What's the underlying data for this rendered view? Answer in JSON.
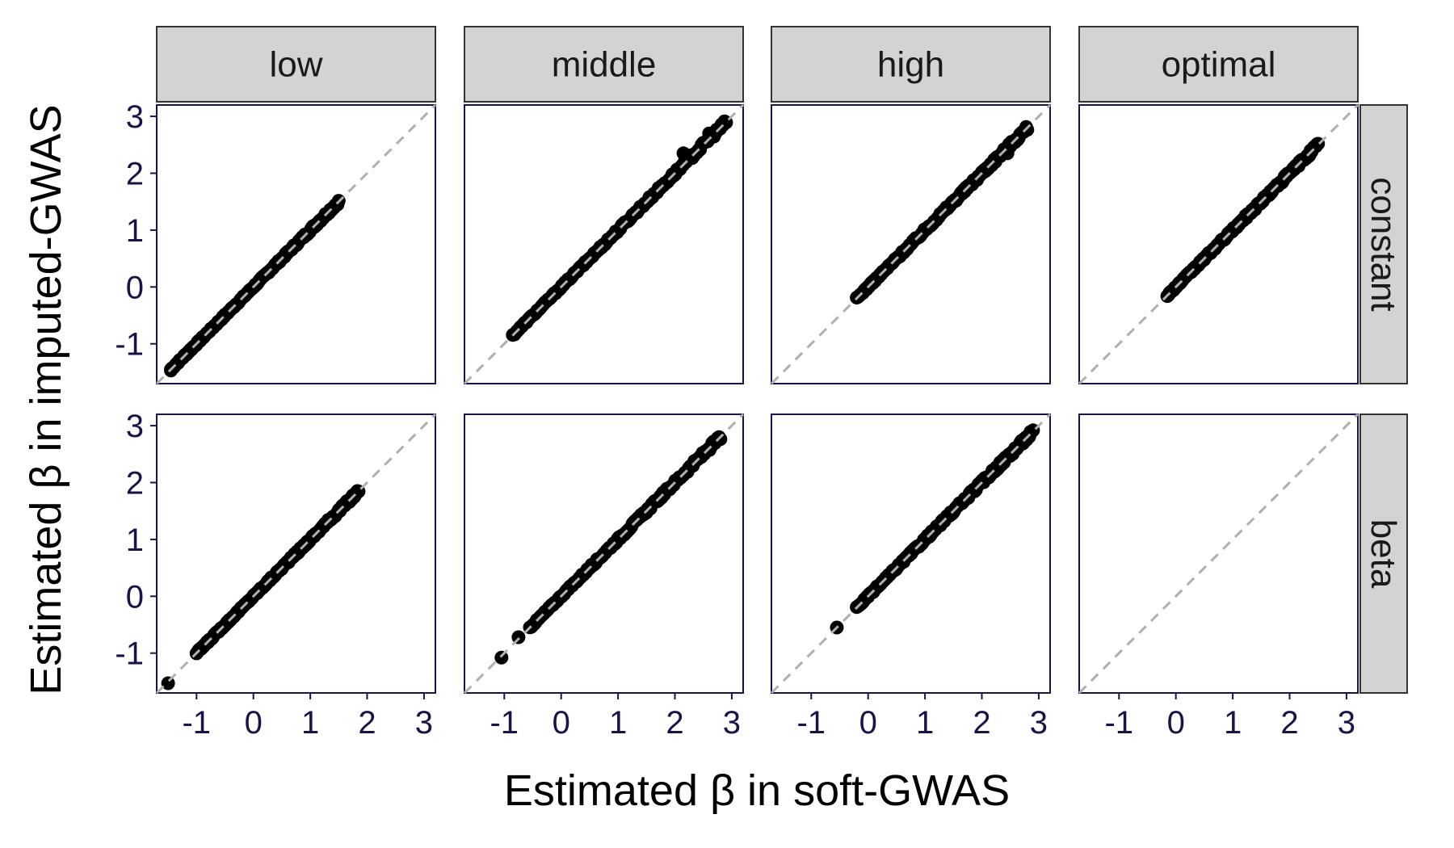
{
  "chart_data": {
    "type": "scatter",
    "xlabel": "Estimated β in soft-GWAS",
    "ylabel": "Estimated β in imputed-GWAS",
    "col_strips": [
      "low",
      "middle",
      "high",
      "optimal"
    ],
    "row_strips": [
      "constant",
      "beta"
    ],
    "xlim": [
      -1.7,
      3.2
    ],
    "ylim": [
      -1.7,
      3.2
    ],
    "x_ticks": [
      -1,
      0,
      1,
      2,
      3
    ],
    "y_ticks": [
      -1,
      0,
      1,
      2,
      3
    ],
    "reference_line": "y = x",
    "colors": {
      "points": "#000000",
      "reference_line": "#b0b0b0",
      "strip_fill": "#d3d3d3",
      "axis_text": "#1a1446",
      "panel_border": "#1a1446"
    },
    "panels": [
      {
        "row": "constant",
        "col": "low",
        "range": [
          -1.45,
          1.5
        ],
        "outliers": [
          [
            -1.45,
            -1.47
          ]
        ]
      },
      {
        "row": "constant",
        "col": "middle",
        "range": [
          -0.85,
          2.9
        ],
        "outliers": [
          [
            2.15,
            2.35
          ],
          [
            2.6,
            2.7
          ]
        ]
      },
      {
        "row": "constant",
        "col": "high",
        "range": [
          -0.2,
          2.8
        ],
        "outliers": [
          [
            2.45,
            2.35
          ]
        ]
      },
      {
        "row": "constant",
        "col": "optimal",
        "range": [
          -0.15,
          2.5
        ],
        "outliers": []
      },
      {
        "row": "beta",
        "col": "low",
        "range": [
          -1.0,
          1.85
        ],
        "outliers": [
          [
            -1.5,
            -1.53
          ]
        ]
      },
      {
        "row": "beta",
        "col": "middle",
        "range": [
          -0.55,
          2.8
        ],
        "outliers": [
          [
            -1.05,
            -1.08
          ],
          [
            -0.75,
            -0.72
          ],
          [
            2.6,
            2.6
          ]
        ]
      },
      {
        "row": "beta",
        "col": "high",
        "range": [
          -0.2,
          2.9
        ],
        "outliers": [
          [
            -0.55,
            -0.55
          ],
          [
            2.4,
            2.4
          ]
        ]
      },
      {
        "row": "beta",
        "col": "optimal",
        "range": null,
        "outliers": []
      }
    ]
  }
}
